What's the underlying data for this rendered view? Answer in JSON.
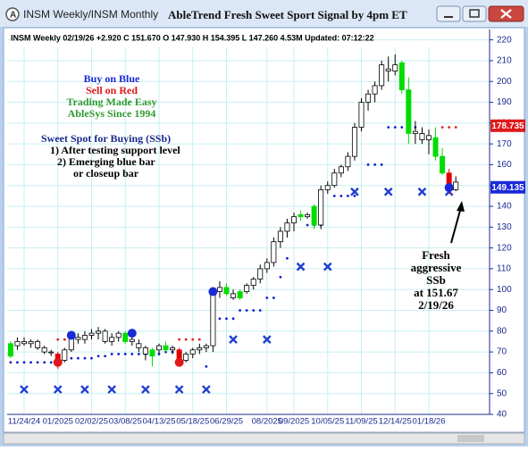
{
  "window_title": "INSM Weekly/INSM Monthly",
  "chart_data": {
    "type": "candlestick",
    "title": "AbleTrend Fresh Sweet Sport Signal by 4pm ET",
    "info": "INSM  Weekly 02/19/26 +2.920 C 151.670 O 147.930 H 154.395 L 147.260 4.53M Updated: 07:12:22",
    "notes": [
      "Buy on Blue",
      "Sell on Red",
      "Trading Made Easy",
      "AbleSys Since 1994",
      "Sweet Spot for Buying (SSb)",
      "1) After testing support level",
      "2) Emerging blue bar",
      "or closeup bar"
    ],
    "annotation": [
      "Fresh",
      "aggressive",
      "SSb",
      "at 151.67",
      "2/19/26"
    ],
    "categories": [
      null,
      null,
      "11/24/24",
      null,
      null,
      null,
      null,
      "01/2025",
      null,
      null,
      null,
      null,
      "02/02/25",
      null,
      null,
      null,
      null,
      "03/08/25",
      null,
      null,
      null,
      null,
      "04/13/25",
      null,
      null,
      null,
      null,
      "05/18/25",
      null,
      null,
      null,
      null,
      "06/29/25",
      null,
      null,
      null,
      null,
      null,
      "08/2025",
      null,
      null,
      null,
      "09/2025",
      null,
      null,
      null,
      null,
      "10/05/25",
      null,
      null,
      null,
      null,
      "11/09/25",
      null,
      null,
      null,
      null,
      "12/14/25",
      null,
      null,
      null,
      null,
      "01/18/26",
      null,
      null,
      null,
      null
    ],
    "open": [
      68,
      73,
      75,
      74,
      75,
      72,
      70,
      69,
      66,
      71,
      77,
      76,
      78,
      79,
      80,
      75,
      77,
      79,
      76,
      74,
      72,
      68,
      71,
      73,
      71,
      71,
      66,
      69,
      71,
      72,
      73,
      99,
      101,
      98,
      96,
      99,
      102,
      105,
      110,
      113,
      123,
      128,
      132,
      136,
      135,
      140,
      131,
      148,
      150,
      156,
      159,
      164,
      178,
      190,
      194,
      198,
      206,
      205,
      209,
      196,
      176,
      175,
      172,
      173,
      164,
      156,
      147.93
    ],
    "high": [
      75,
      77,
      77,
      76,
      76,
      73,
      71,
      70,
      72,
      80,
      79,
      80,
      81,
      82,
      81,
      79,
      80,
      80,
      80,
      76,
      73,
      72,
      74,
      75,
      73,
      72,
      70,
      72,
      74,
      74,
      101,
      104,
      103,
      100,
      100,
      103,
      106,
      112,
      115,
      125,
      130,
      134,
      137,
      138,
      137,
      141,
      150,
      152,
      158,
      160,
      166,
      180,
      192,
      196,
      200,
      210,
      212,
      213,
      210,
      202,
      181,
      178,
      177,
      178,
      168,
      158,
      154.395
    ],
    "low": [
      67,
      71,
      73,
      72,
      71,
      69,
      68,
      62,
      65,
      70,
      74,
      74,
      76,
      76,
      74,
      73,
      75,
      74,
      73,
      70,
      66,
      63,
      69,
      70,
      69,
      64,
      65,
      67,
      69,
      70,
      70,
      96,
      97,
      95,
      95,
      98,
      100,
      103,
      108,
      111,
      120,
      125,
      128,
      133,
      134,
      129,
      129,
      146,
      149,
      154,
      157,
      162,
      176,
      186,
      190,
      196,
      200,
      203,
      194,
      170,
      170,
      170,
      165,
      162,
      155,
      146,
      147.26
    ],
    "close": [
      74,
      75,
      74,
      75,
      72,
      70,
      70,
      64,
      71,
      78,
      76,
      78,
      79,
      80,
      75,
      77,
      79,
      75,
      75,
      72,
      69,
      71,
      73,
      71,
      72,
      66,
      69,
      71,
      72,
      73,
      99,
      101,
      98,
      96,
      99,
      102,
      105,
      110,
      113,
      123,
      128,
      132,
      135,
      135,
      136,
      131,
      148,
      150,
      156,
      159,
      164,
      178,
      190,
      194,
      198,
      208,
      205,
      208,
      196,
      175,
      175,
      172,
      174,
      164,
      156,
      149,
      151.67
    ],
    "signals": [
      "buy",
      "none",
      "none",
      "none",
      "none",
      "none",
      "none",
      "sell",
      "none",
      "none",
      "none",
      "none",
      "none",
      "none",
      "none",
      "none",
      "none",
      "buy",
      "none",
      "none",
      "none",
      "buy",
      "none",
      "buy",
      "none",
      "sell",
      "none",
      "none",
      "none",
      "none",
      "none",
      "none",
      "buy",
      "none",
      "buy",
      "none",
      "none",
      "none",
      "none",
      "none",
      "none",
      "none",
      "none",
      "buy",
      "none",
      "buy",
      "none",
      "none",
      "none",
      "none",
      "none",
      "none",
      "none",
      "none",
      "none",
      "none",
      "none",
      "none",
      "buy",
      "buy",
      "none",
      "none",
      "none",
      "buy",
      "buy",
      "sell",
      "none"
    ],
    "signal_colors": {
      "buy": "#00dd00",
      "sell": "#e00000",
      "none": "#ffffff"
    },
    "support": {
      "color": "#1020d0",
      "values": [
        65,
        65,
        65,
        65,
        65,
        65,
        65,
        null,
        null,
        67,
        67,
        67,
        67,
        68,
        68,
        69,
        69,
        69,
        69,
        69,
        69,
        69,
        69,
        70,
        70,
        null,
        null,
        null,
        null,
        63,
        null,
        86,
        86,
        86,
        90,
        90,
        90,
        90,
        96,
        96,
        106,
        115,
        null,
        null,
        131,
        131,
        131,
        null,
        145,
        145,
        145,
        145,
        null,
        160,
        160,
        160,
        178,
        178,
        178,
        178,
        178,
        null,
        null,
        null,
        null,
        null,
        null
      ]
    },
    "resistance": {
      "color": "#e02020",
      "values": [
        null,
        null,
        null,
        null,
        null,
        null,
        null,
        76,
        76,
        76,
        null,
        null,
        null,
        null,
        null,
        null,
        null,
        null,
        null,
        null,
        null,
        null,
        null,
        null,
        null,
        76,
        76,
        76,
        76,
        null,
        null,
        null,
        null,
        null,
        null,
        null,
        null,
        null,
        null,
        null,
        null,
        null,
        null,
        null,
        null,
        null,
        null,
        null,
        null,
        null,
        null,
        null,
        null,
        null,
        null,
        null,
        null,
        null,
        null,
        null,
        null,
        null,
        null,
        null,
        178,
        178,
        178
      ]
    },
    "x_marks": {
      "color": "#2040d0",
      "values": [
        null,
        null,
        52,
        null,
        null,
        null,
        null,
        52,
        null,
        null,
        null,
        52,
        null,
        null,
        null,
        52,
        null,
        null,
        null,
        null,
        52,
        null,
        null,
        null,
        null,
        52,
        null,
        null,
        null,
        52,
        null,
        null,
        null,
        76,
        null,
        null,
        null,
        null,
        76,
        null,
        null,
        null,
        null,
        111,
        null,
        null,
        null,
        111,
        null,
        null,
        null,
        147,
        null,
        null,
        null,
        null,
        147,
        null,
        null,
        null,
        null,
        147,
        null,
        null,
        null,
        147,
        null
      ]
    },
    "blue_circles": {
      "color": "#1a2ad8",
      "values": [
        null,
        null,
        null,
        null,
        null,
        null,
        null,
        null,
        null,
        78,
        null,
        null,
        null,
        null,
        null,
        null,
        null,
        null,
        79,
        null,
        null,
        null,
        null,
        null,
        null,
        null,
        null,
        null,
        null,
        null,
        99,
        null,
        null,
        null,
        null,
        null,
        null,
        null,
        null,
        null,
        null,
        null,
        null,
        null,
        null,
        null,
        null,
        null,
        null,
        null,
        null,
        null,
        null,
        null,
        null,
        null,
        null,
        null,
        null,
        null,
        null,
        null,
        null,
        null,
        null,
        149,
        null
      ]
    },
    "red_circles": {
      "color": "#e01818",
      "values": [
        null,
        null,
        null,
        null,
        null,
        null,
        null,
        65,
        null,
        null,
        null,
        null,
        null,
        null,
        null,
        null,
        null,
        null,
        null,
        null,
        null,
        null,
        null,
        null,
        null,
        65,
        null,
        null,
        null,
        null,
        null,
        null,
        null,
        null,
        null,
        null,
        null,
        null,
        null,
        null,
        null,
        null,
        null,
        null,
        null,
        null,
        null,
        null,
        null,
        null,
        null,
        null,
        null,
        null,
        null,
        null,
        null,
        null,
        null,
        null,
        null,
        null,
        null,
        null,
        null,
        null,
        null
      ]
    },
    "price_flags": [
      {
        "value": 178.735,
        "color": "#e01818"
      },
      {
        "value": 149.135,
        "color": "#1a2ad8"
      }
    ],
    "ylim": [
      40,
      225
    ],
    "yticks": [
      40,
      50,
      60,
      70,
      80,
      90,
      100,
      110,
      120,
      130,
      140,
      150,
      160,
      170,
      180,
      190,
      200,
      210,
      220
    ],
    "grid": true
  }
}
